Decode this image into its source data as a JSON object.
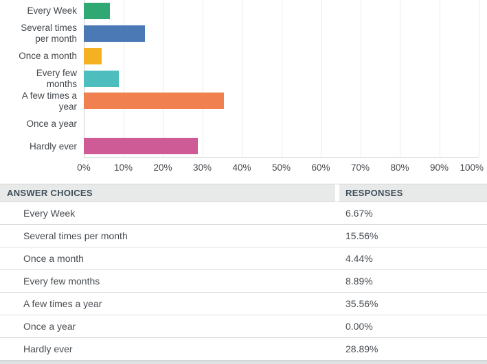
{
  "chart_data": {
    "type": "bar",
    "orientation": "horizontal",
    "title": "",
    "xlabel": "",
    "ylabel": "",
    "categories": [
      "Every Week",
      "Several times per month",
      "Once a month",
      "Every few months",
      "A few times a year",
      "Once a year",
      "Hardly ever"
    ],
    "label_lines": [
      [
        "Every Week"
      ],
      [
        "Several times",
        "per month"
      ],
      [
        "Once a month"
      ],
      [
        "Every few",
        "months"
      ],
      [
        "A few times a",
        "year"
      ],
      [
        "Once a year"
      ],
      [
        "Hardly ever"
      ]
    ],
    "values": [
      6.67,
      15.56,
      4.44,
      8.89,
      35.56,
      0,
      28.89
    ],
    "bar_colors": [
      "#2FA873",
      "#4A79B5",
      "#F4B223",
      "#4EBDBD",
      "#F0804F",
      null,
      "#CE5B95"
    ],
    "xlim": [
      0,
      100
    ],
    "x_ticks": [
      "0%",
      "10%",
      "20%",
      "30%",
      "40%",
      "50%",
      "60%",
      "70%",
      "80%",
      "90%",
      "100%"
    ],
    "grid": "vertical",
    "legend": "none"
  },
  "table": {
    "headers": [
      "ANSWER CHOICES",
      "RESPONSES"
    ],
    "rows": [
      {
        "answer": "Every Week",
        "response": "6.67%"
      },
      {
        "answer": "Several times per month",
        "response": "15.56%"
      },
      {
        "answer": "Once a month",
        "response": "4.44%"
      },
      {
        "answer": "Every few months",
        "response": "8.89%"
      },
      {
        "answer": "A few times a year",
        "response": "35.56%"
      },
      {
        "answer": "Once a year",
        "response": "0.00%"
      },
      {
        "answer": "Hardly ever",
        "response": "28.89%"
      }
    ]
  },
  "colors": {
    "header_background": "#E8E9E9",
    "grid_line": "#E7E9E9",
    "axis_line": "#C9CDCD",
    "text": "#43484D",
    "header_text": "#3D4D58"
  }
}
